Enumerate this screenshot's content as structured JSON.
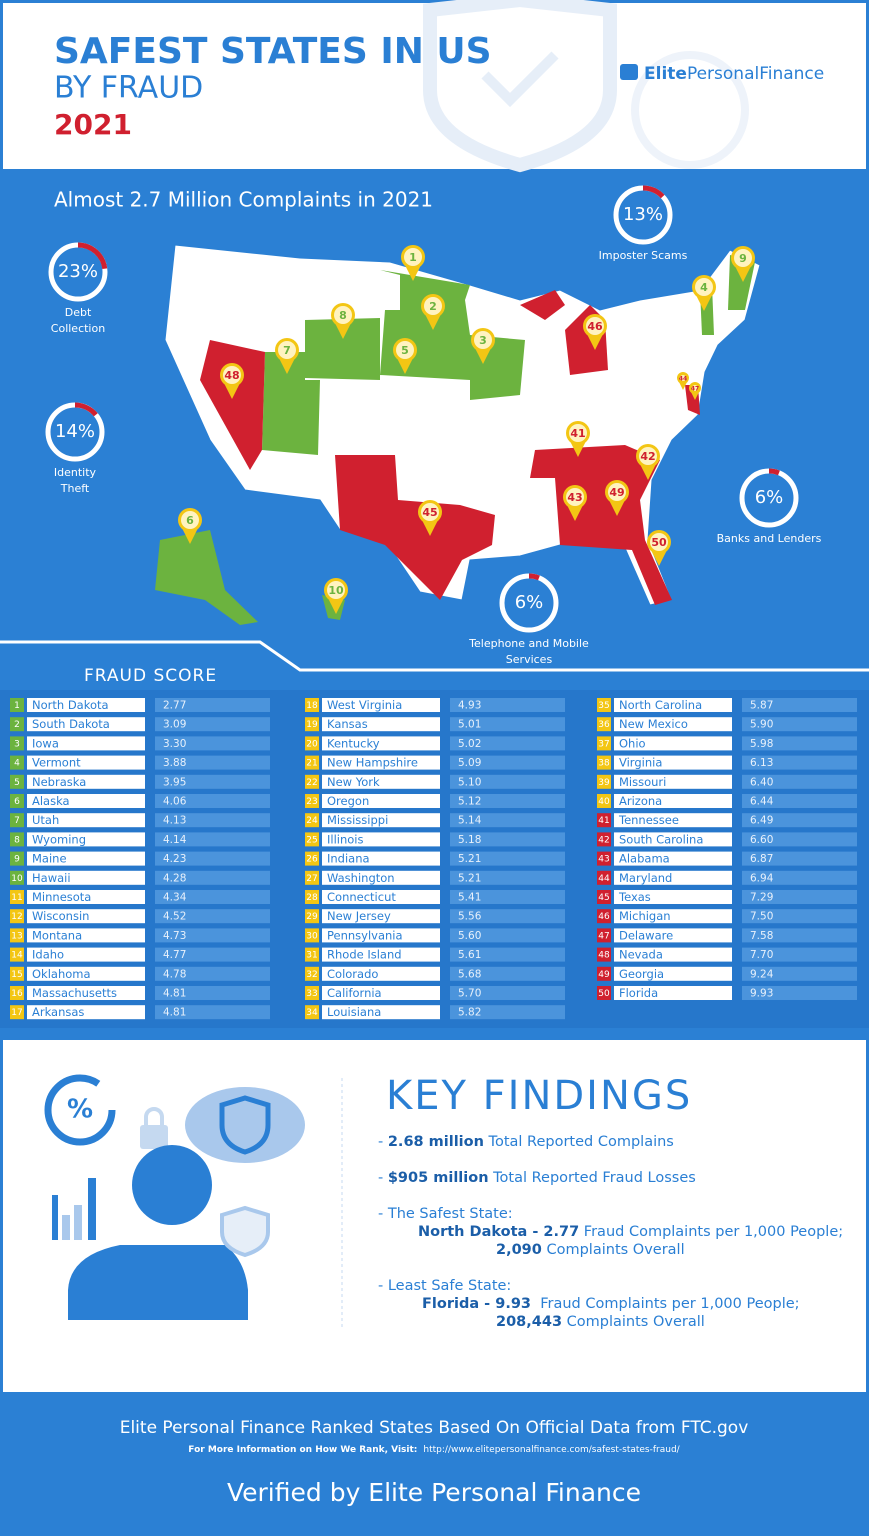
{
  "header": {
    "title": "SAFEST STATES IN US",
    "subtitle": "BY FRAUD",
    "year": "2021",
    "brand_bold": "Elite",
    "brand_rest": "PersonalFinance"
  },
  "map": {
    "heading": "Almost 2.7 Million Complaints in 2021",
    "stats": [
      {
        "value": 23,
        "label": "23%",
        "name": "Debt Collection"
      },
      {
        "value": 14,
        "label": "14%",
        "name": "Identity Theft"
      },
      {
        "value": 13,
        "label": "13%",
        "name": "Imposter Scams"
      },
      {
        "value": 6,
        "label": "6%",
        "name": "Banks and Lenders"
      },
      {
        "value": 6,
        "label": "6%",
        "name": "Telephone and Mobile Services"
      }
    ],
    "pins": [
      1,
      2,
      3,
      4,
      5,
      6,
      7,
      8,
      9,
      10,
      41,
      42,
      43,
      44,
      45,
      46,
      47,
      48,
      49,
      50
    ]
  },
  "table": {
    "heading": "FRAUD SCORE",
    "rows": [
      [
        1,
        "North Dakota",
        "2.77"
      ],
      [
        2,
        "South Dakota",
        "3.09"
      ],
      [
        3,
        "Iowa",
        "3.30"
      ],
      [
        4,
        "Vermont",
        "3.88"
      ],
      [
        5,
        "Nebraska",
        "3.95"
      ],
      [
        6,
        "Alaska",
        "4.06"
      ],
      [
        7,
        "Utah",
        "4.13"
      ],
      [
        8,
        "Wyoming",
        "4.14"
      ],
      [
        9,
        "Maine",
        "4.23"
      ],
      [
        10,
        "Hawaii",
        "4.28"
      ],
      [
        11,
        "Minnesota",
        "4.34"
      ],
      [
        12,
        "Wisconsin",
        "4.52"
      ],
      [
        13,
        "Montana",
        "4.73"
      ],
      [
        14,
        "Idaho",
        "4.77"
      ],
      [
        15,
        "Oklahoma",
        "4.78"
      ],
      [
        16,
        "Massachusetts",
        "4.81"
      ],
      [
        17,
        "Arkansas",
        "4.81"
      ],
      [
        18,
        "West Virginia",
        "4.93"
      ],
      [
        19,
        "Kansas",
        "5.01"
      ],
      [
        20,
        "Kentucky",
        "5.02"
      ],
      [
        21,
        "New Hampshire",
        "5.09"
      ],
      [
        22,
        "New York",
        "5.10"
      ],
      [
        23,
        "Oregon",
        "5.12"
      ],
      [
        24,
        "Mississippi",
        "5.14"
      ],
      [
        25,
        "Illinois",
        "5.18"
      ],
      [
        26,
        "Indiana",
        "5.21"
      ],
      [
        27,
        "Washington",
        "5.21"
      ],
      [
        28,
        "Connecticut",
        "5.41"
      ],
      [
        29,
        "New Jersey",
        "5.56"
      ],
      [
        30,
        "Pennsylvania",
        "5.60"
      ],
      [
        31,
        "Rhode Island",
        "5.61"
      ],
      [
        32,
        "Colorado",
        "5.68"
      ],
      [
        33,
        "California",
        "5.70"
      ],
      [
        34,
        "Louisiana",
        "5.82"
      ],
      [
        35,
        "North Carolina",
        "5.87"
      ],
      [
        36,
        "New Mexico",
        "5.90"
      ],
      [
        37,
        "Ohio",
        "5.98"
      ],
      [
        38,
        "Virginia",
        "6.13"
      ],
      [
        39,
        "Missouri",
        "6.40"
      ],
      [
        40,
        "Arizona",
        "6.44"
      ],
      [
        41,
        "Tennessee",
        "6.49"
      ],
      [
        42,
        "South Carolina",
        "6.60"
      ],
      [
        43,
        "Alabama",
        "6.87"
      ],
      [
        44,
        "Maryland",
        "6.94"
      ],
      [
        45,
        "Texas",
        "7.29"
      ],
      [
        46,
        "Michigan",
        "7.50"
      ],
      [
        47,
        "Delaware",
        "7.58"
      ],
      [
        48,
        "Nevada",
        "7.70"
      ],
      [
        49,
        "Georgia",
        "9.24"
      ],
      [
        50,
        "Florida",
        "9.93"
      ]
    ]
  },
  "findings": {
    "heading": "KEY FINDINGS",
    "lines": [
      [
        {
          "text": "- ",
          "bold": false
        },
        {
          "text": "2.68 million",
          "bold": true
        },
        {
          "text": " Total Reported Complains",
          "bold": false
        }
      ],
      [
        {
          "text": "- ",
          "bold": false
        },
        {
          "text": "$905 million",
          "bold": true
        },
        {
          "text": " Total Reported Fraud Losses",
          "bold": false
        }
      ],
      [
        {
          "text": "- The Safest State:",
          "bold": false
        }
      ],
      [
        {
          "text": "North Dakota - 2.77",
          "bold": true
        },
        {
          "text": " Fraud Complaints per 1,000 People;",
          "bold": false
        }
      ],
      [
        {
          "text": "2,090",
          "bold": true
        },
        {
          "text": " Complaints Overall",
          "bold": false
        }
      ],
      [
        {
          "text": "- Least Safe State:",
          "bold": false
        }
      ],
      [
        {
          "text": "Florida - 9.93",
          "bold": true
        },
        {
          "text": "  Fraud Complaints per 1,000 People;",
          "bold": false
        }
      ],
      [
        {
          "text": "208,443",
          "bold": true
        },
        {
          "text": " Complaints Overall",
          "bold": false
        }
      ]
    ]
  },
  "footer": {
    "line1": "Elite Personal Finance Ranked States Based On Official Data from FTC.gov",
    "line2": "For More Information on How We Rank, Visit:",
    "url": "http://www.elitepersonalfinance.com/safest-states-fraud/",
    "verified": "Verified by Elite Personal Finance"
  }
}
